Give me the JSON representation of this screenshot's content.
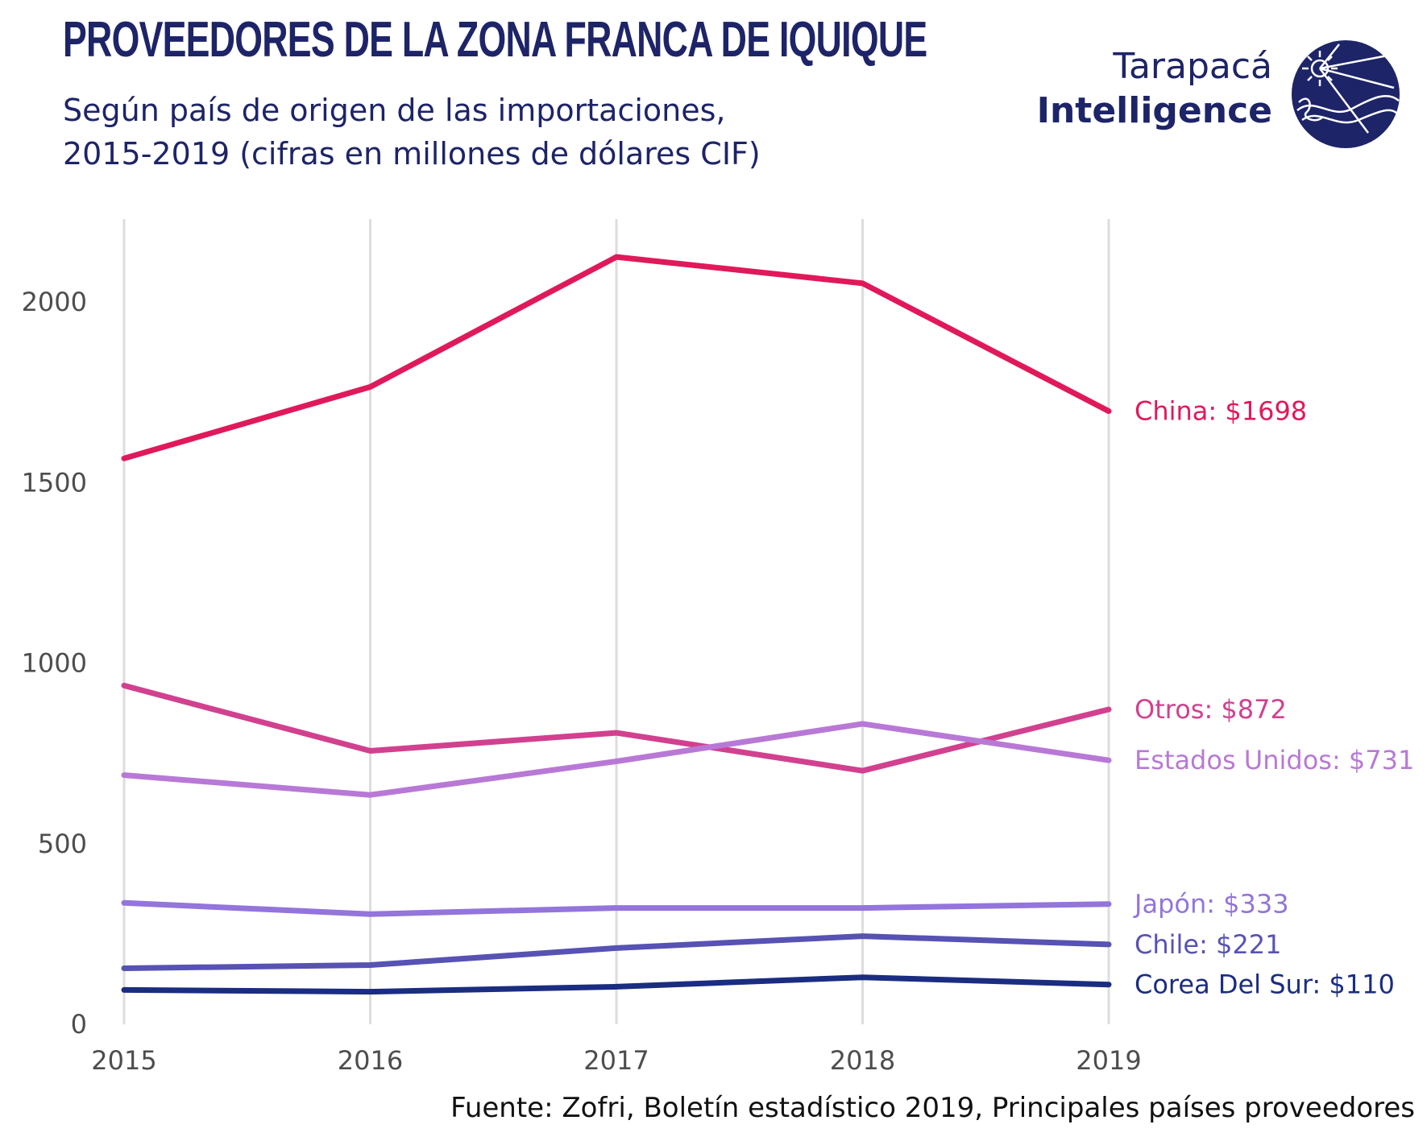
{
  "header": {
    "title": "PROVEEDORES DE LA ZONA FRANCA DE IQUIQUE",
    "subtitle_line1": "Según país de origen de las importaciones,",
    "subtitle_line2": "2015-2019 (cifras en millones de dólares CIF)"
  },
  "logo": {
    "line1": "Tarapacá",
    "line2": "Intelligence",
    "icon": "sun-over-waves-icon",
    "color": "#1d2468"
  },
  "source": "Fuente: Zofri, Boletín estadístico 2019, Principales países proveedores",
  "chart_data": {
    "type": "line",
    "x": [
      2015,
      2016,
      2017,
      2018,
      2019
    ],
    "x_tick_labels": [
      "2015",
      "2016",
      "2017",
      "2018",
      "2019"
    ],
    "y_tick_labels": [
      "0",
      "500",
      "1000",
      "1500",
      "2000"
    ],
    "y_ticks": [
      0,
      500,
      1000,
      1500,
      2000
    ],
    "ylim": [
      0,
      2230
    ],
    "grid": "vertical",
    "series": [
      {
        "name": "China",
        "label": "China: $1698",
        "color": "#e0195a",
        "values": [
          1567,
          1765,
          2125,
          2052,
          1698
        ]
      },
      {
        "name": "Otros",
        "label": "Otros: $872",
        "color": "#d1418f",
        "values": [
          938,
          757,
          807,
          702,
          872
        ]
      },
      {
        "name": "Estados Unidos",
        "label": "Estados Unidos: $731",
        "color": "#b879d6",
        "values": [
          690,
          635,
          728,
          832,
          731
        ]
      },
      {
        "name": "Japón",
        "label": "Japón: $333",
        "color": "#9375db",
        "values": [
          336,
          305,
          322,
          322,
          333
        ]
      },
      {
        "name": "Chile",
        "label": "Chile: $221",
        "color": "#5752b3",
        "values": [
          155,
          164,
          211,
          244,
          221
        ]
      },
      {
        "name": "Corea Del Sur",
        "label": "Corea Del Sur: $110",
        "color": "#1b2d80",
        "values": [
          95,
          90,
          104,
          130,
          110
        ]
      }
    ]
  }
}
